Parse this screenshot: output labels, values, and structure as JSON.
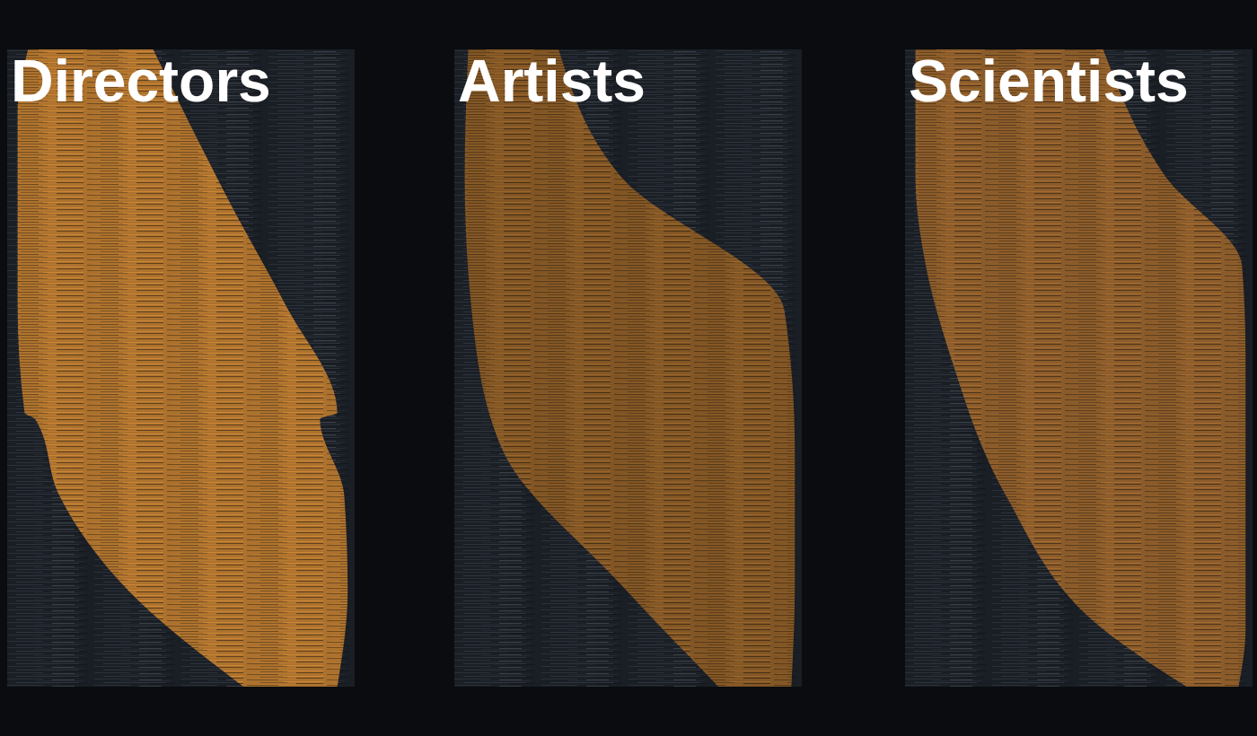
{
  "chart_data": [
    {
      "type": "range_area",
      "title": "Directors",
      "orientation": "horizontal",
      "tick_labels": false,
      "color": "#b8782e",
      "xlim": [
        0,
        100
      ],
      "ylim": [
        0,
        100
      ],
      "y": [
        0,
        10,
        25,
        40,
        57,
        58,
        70,
        85,
        100
      ],
      "x_start": [
        6,
        3,
        3,
        3,
        5,
        8,
        15,
        35,
        68
      ],
      "x_end": [
        42,
        51,
        65,
        80,
        95,
        90,
        97,
        98,
        95
      ]
    },
    {
      "type": "range_area",
      "title": "Artists",
      "orientation": "horizontal",
      "tick_labels": false,
      "color": "#8a5a24",
      "xlim": [
        0,
        100
      ],
      "ylim": [
        0,
        100
      ],
      "y": [
        0,
        20,
        41,
        63,
        84,
        100
      ],
      "x_start": [
        4,
        3,
        5,
        14,
        48,
        76
      ],
      "x_end": [
        30,
        48,
        95,
        98,
        98,
        97
      ]
    },
    {
      "type": "range_area",
      "title": "Scientists",
      "orientation": "horizontal",
      "tick_labels": false,
      "color": "#94602a",
      "xlim": [
        0,
        100
      ],
      "ylim": [
        0,
        100
      ],
      "y": [
        0,
        20,
        34,
        48,
        70,
        91,
        100
      ],
      "x_start": [
        3,
        3,
        6,
        13,
        29,
        57,
        81
      ],
      "x_end": [
        57,
        75,
        97,
        98,
        98,
        98,
        96
      ]
    }
  ]
}
